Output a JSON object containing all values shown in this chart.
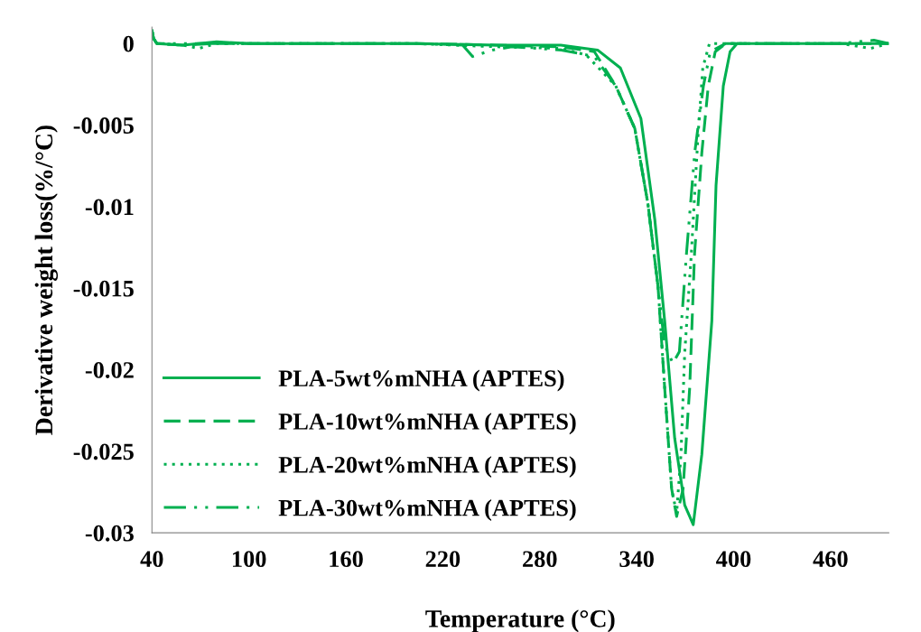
{
  "chart_data": {
    "type": "line",
    "xlabel": "Temperature (°C)",
    "ylabel": "Derivative weight loss(%/°C)",
    "xlim": [
      40,
      496
    ],
    "xticks": [
      40,
      100,
      160,
      220,
      280,
      340,
      400,
      460
    ],
    "ylim": [
      -0.03,
      0.001
    ],
    "yticks": [
      0,
      -0.005,
      -0.01,
      -0.015,
      -0.02,
      -0.025,
      -0.03
    ],
    "grid": false,
    "legend": "bottom left",
    "marker": "none",
    "series": [
      {
        "name": "PLA-5wt%mNHA (APTES)",
        "color": "#00b050",
        "line_style": "solid",
        "x": [
          40,
          41,
          43,
          59,
          80,
          100,
          151,
          202,
          253,
          293,
          315.8,
          329.9,
          342.6,
          351.2,
          357.3,
          363.5,
          369.7,
          375,
          380.3,
          386.5,
          389.1,
          393.6,
          397.8,
          402.1,
          426,
          466,
          496
        ],
        "values": [
          0.0008,
          0.0003,
          0,
          -0.0001,
          0.0001,
          0,
          0,
          0,
          -0.0001,
          -0.0001,
          -0.0004,
          -0.0015,
          -0.0046,
          -0.0108,
          -0.017,
          -0.0242,
          -0.0283,
          -0.0295,
          -0.0252,
          -0.017,
          -0.0087,
          -0.0026,
          -0.0005,
          0,
          0,
          0,
          0
        ]
      },
      {
        "name": "PLA-10wt%mNHA (APTES)",
        "color": "#00b050",
        "line_style": "dashed",
        "x": [
          40,
          41,
          43,
          59,
          80,
          100,
          151,
          202,
          253,
          293,
          313.8,
          327,
          338.8,
          346.9,
          353.2,
          357.3,
          361.6,
          364.7,
          368.7,
          372.8,
          375.8,
          380.3,
          384.3,
          388.6,
          395.2,
          426,
          466,
          496
        ],
        "values": [
          0.0008,
          0.0003,
          0,
          -0.0001,
          0,
          0,
          0,
          0,
          -0.0001,
          -0.0002,
          -0.0005,
          -0.0026,
          -0.0052,
          -0.0098,
          -0.0149,
          -0.0211,
          -0.0273,
          -0.029,
          -0.0273,
          -0.0211,
          -0.0129,
          -0.0067,
          -0.0026,
          -0.0005,
          0,
          0,
          0,
          0
        ]
      },
      {
        "name": "PLA-20wt%mNHA (APTES)",
        "color": "#00b050",
        "line_style": "dotted",
        "x": [
          40,
          41,
          43,
          59,
          69,
          80,
          100,
          151,
          202,
          253,
          293,
          308.7,
          327,
          338.8,
          346.9,
          353.2,
          357.3,
          361.6,
          364.7,
          367.4,
          369.7,
          373.8,
          377.9,
          380.9,
          385,
          426,
          466,
          484.8,
          496
        ],
        "values": [
          0.0008,
          0.0003,
          0,
          -0.0001,
          -0.0003,
          0,
          0,
          0,
          0,
          -0.0002,
          -0.0003,
          -0.0007,
          -0.0026,
          -0.0052,
          -0.0098,
          -0.0149,
          -0.0211,
          -0.0273,
          -0.0288,
          -0.0252,
          -0.019,
          -0.0129,
          -0.0057,
          -0.0015,
          0,
          0,
          0,
          -0.0003,
          0
        ]
      },
      {
        "name": "PLA-30wt%mNHA (APTES)",
        "color": "#00b050",
        "line_style": "dashdot",
        "x": [
          40,
          41,
          43,
          59,
          80,
          100,
          151,
          202,
          232.3,
          238.4,
          250.6,
          262.8,
          293.4,
          313.8,
          327,
          338.8,
          346.9,
          353.2,
          357.3,
          362.4,
          366.4,
          370.8,
          375.9,
          381.3,
          385.5,
          395.2,
          426,
          466,
          486.8,
          496
        ],
        "values": [
          0.0008,
          0.0003,
          0,
          0,
          0,
          0,
          0,
          0,
          -0.0001,
          -0.0008,
          -0.0004,
          -0.0002,
          -0.0004,
          -0.0008,
          -0.0026,
          -0.0052,
          -0.0098,
          -0.0149,
          -0.0185,
          -0.0196,
          -0.0189,
          -0.0129,
          -0.0067,
          -0.0026,
          -0.0005,
          0,
          0,
          0,
          0.0002,
          0
        ]
      }
    ]
  }
}
